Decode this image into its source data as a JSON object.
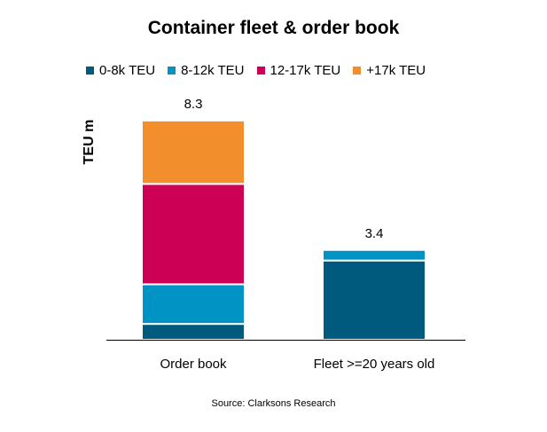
{
  "chart_data": {
    "type": "bar",
    "stacked": true,
    "title": "Container fleet & order book",
    "ylabel": "TEU m",
    "xlabel": "",
    "categories": [
      "Order book",
      "Fleet >=20 years old"
    ],
    "series": [
      {
        "name": "0-8k TEU",
        "color": "#005a7d",
        "values": [
          0.6,
          3.0
        ]
      },
      {
        "name": "8-12k TEU",
        "color": "#0093c4",
        "values": [
          1.5,
          0.4
        ]
      },
      {
        "name": "12-17k TEU",
        "color": "#cc0055",
        "values": [
          3.8,
          0.0
        ]
      },
      {
        "name": "+17k TEU",
        "color": "#f28e2b",
        "values": [
          2.4,
          0.0
        ]
      }
    ],
    "totals": [
      "8.3",
      "3.4"
    ],
    "ylim": [
      0,
      9
    ],
    "grid": false,
    "legend_position": "top",
    "source": "Source: Clarksons Research"
  }
}
